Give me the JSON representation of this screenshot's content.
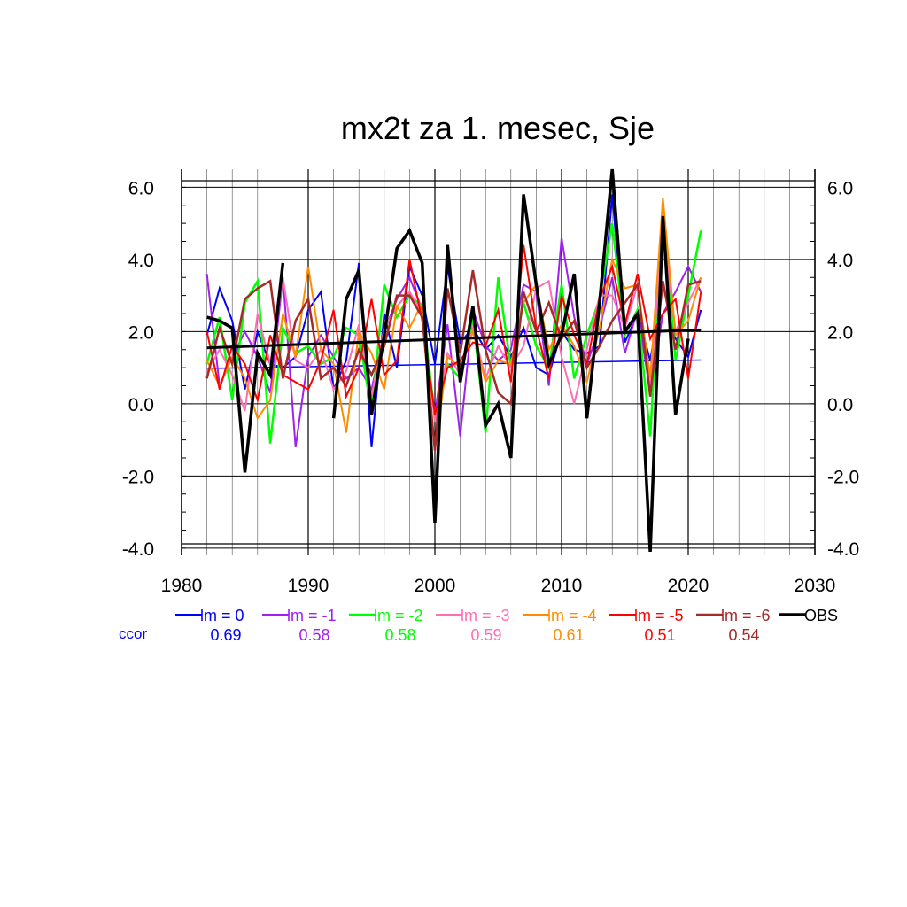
{
  "chart_data": {
    "type": "line",
    "title": "mx2t za 1. mesec, Sje",
    "xlabel": "",
    "ylabel": "",
    "xlim": [
      1980,
      2030
    ],
    "ylim": [
      -4.2,
      6.5
    ],
    "x_ticks": [
      1980,
      1990,
      2000,
      2010,
      2020,
      2030
    ],
    "x_tick_labels": [
      "1980",
      "1990",
      "2000",
      "2010",
      "2020",
      "2030"
    ],
    "y_ticks": [
      6,
      4,
      2,
      0,
      -2,
      -4
    ],
    "y_tick_labels": [
      "6.0",
      "4.0",
      "2.0",
      "0.0",
      "-2.0",
      "-4.0"
    ],
    "grid": true,
    "legend_position": "bottom",
    "ccor_label": "ccor",
    "x": [
      1982,
      1983,
      1984,
      1985,
      1986,
      1987,
      1988,
      1989,
      1990,
      1991,
      1992,
      1993,
      1994,
      1995,
      1996,
      1997,
      1998,
      1999,
      2000,
      2001,
      2002,
      2003,
      2004,
      2005,
      2006,
      2007,
      2008,
      2009,
      2010,
      2011,
      2012,
      2013,
      2014,
      2015,
      2016,
      2017,
      2018,
      2019,
      2020,
      2021
    ],
    "series": [
      {
        "name": "lm = 0",
        "ccor": "0.69",
        "color": "#0000ff",
        "width": 2,
        "values": [
          1.9,
          3.2,
          2.3,
          0.4,
          2.0,
          1.1,
          1.0,
          1.3,
          2.6,
          3.1,
          0.4,
          1.2,
          3.9,
          -1.2,
          2.5,
          1.0,
          3.8,
          3.0,
          1.1,
          3.8,
          1.7,
          2.1,
          1.5,
          1.9,
          1.3,
          2.1,
          1.0,
          0.8,
          2.0,
          1.5,
          1.4,
          1.6,
          5.8,
          1.7,
          2.5,
          1.2,
          3.3,
          1.8,
          1.3,
          2.6
        ],
        "trend": [
          0.98,
          1.21
        ]
      },
      {
        "name": "lm = -1",
        "ccor": "0.58",
        "color": "#a020f0",
        "width": 2,
        "values": [
          3.6,
          0.5,
          1.3,
          2.0,
          1.3,
          0.3,
          3.5,
          -1.2,
          1.3,
          1.9,
          1.3,
          0.7,
          1.0,
          0.4,
          2.0,
          2.9,
          3.5,
          2.6,
          -0.3,
          2.2,
          -0.9,
          2.6,
          1.6,
          1.2,
          1.5,
          3.3,
          3.1,
          0.5,
          4.6,
          2.4,
          1.1,
          2.1,
          3.5,
          1.4,
          2.6,
          0.3,
          2.5,
          3.1,
          3.8,
          3.1
        ]
      },
      {
        "name": "lm = -2",
        "ccor": "0.58",
        "color": "#00ff00",
        "width": 2.5,
        "values": [
          1.1,
          2.4,
          0.1,
          2.8,
          3.4,
          -1.1,
          2.1,
          1.4,
          1.6,
          1.1,
          1.3,
          2.1,
          1.9,
          -0.2,
          3.3,
          2.4,
          3.0,
          2.7,
          -0.4,
          1.1,
          0.7,
          2.4,
          -0.8,
          3.5,
          1.0,
          2.8,
          1.6,
          1.0,
          3.3,
          0.7,
          1.9,
          2.9,
          5.0,
          1.9,
          2.6,
          -0.9,
          5.2,
          1.2,
          3.0,
          4.8
        ]
      },
      {
        "name": "lm = -3",
        "ccor": "0.59",
        "color": "#ff6eb4",
        "width": 2,
        "values": [
          0.9,
          1.5,
          0.8,
          -0.2,
          2.5,
          1.1,
          3.5,
          1.2,
          1.0,
          1.5,
          0.4,
          0.9,
          2.2,
          0.2,
          2.1,
          2.7,
          3.1,
          2.5,
          -0.5,
          1.4,
          0.8,
          2.1,
          0.7,
          1.6,
          1.0,
          1.6,
          3.2,
          3.4,
          1.3,
          0.0,
          1.5,
          3.0,
          3.0,
          2.1,
          3.3,
          0.4,
          4.9,
          2.0,
          2.8,
          3.5
        ]
      },
      {
        "name": "lm = -4",
        "ccor": "0.61",
        "color": "#ff8c00",
        "width": 2,
        "values": [
          1.2,
          0.5,
          1.3,
          0.7,
          -0.4,
          0.1,
          2.5,
          1.3,
          3.8,
          1.5,
          1.1,
          -0.8,
          2.0,
          1.4,
          0.4,
          2.7,
          2.1,
          2.8,
          -1.3,
          1.3,
          1.0,
          2.0,
          0.6,
          1.2,
          1.1,
          2.8,
          3.3,
          1.5,
          2.2,
          1.6,
          0.6,
          2.1,
          4.0,
          3.2,
          3.3,
          0.7,
          5.7,
          1.9,
          2.3,
          3.5
        ]
      },
      {
        "name": "lm = -5",
        "ccor": "0.51",
        "color": "#ff0000",
        "width": 2,
        "values": [
          2.0,
          0.4,
          1.6,
          1.1,
          0.1,
          1.9,
          0.8,
          0.6,
          0.4,
          1.2,
          2.6,
          0.2,
          1.0,
          2.9,
          0.8,
          1.2,
          4.0,
          2.3,
          -0.3,
          1.0,
          1.2,
          1.7,
          1.6,
          2.6,
          0.6,
          4.4,
          2.1,
          0.7,
          3.0,
          1.9,
          1.1,
          2.9,
          3.8,
          2.2,
          3.6,
          1.8,
          2.5,
          2.9,
          0.7,
          3.1
        ]
      },
      {
        "name": "lm = -6",
        "ccor": "0.54",
        "color": "#a52a2a",
        "width": 2.5,
        "values": [
          0.7,
          2.1,
          1.1,
          2.9,
          3.2,
          3.4,
          0.7,
          2.3,
          2.9,
          0.7,
          1.0,
          0.5,
          1.5,
          0.8,
          1.6,
          3.0,
          3.0,
          2.4,
          -1.3,
          3.2,
          1.4,
          3.7,
          1.5,
          0.3,
          0.0,
          3.1,
          2.0,
          2.8,
          1.8,
          2.3,
          1.0,
          1.6,
          2.3,
          2.8,
          3.3,
          0.2,
          3.4,
          1.5,
          3.3,
          3.4
        ]
      },
      {
        "name": "OBS",
        "ccor": "",
        "color": "#000000",
        "width": 3.5,
        "values": [
          2.4,
          2.3,
          2.1,
          -1.9,
          1.4,
          0.8,
          3.9,
          null,
          null,
          null,
          -0.4,
          2.9,
          3.7,
          -0.3,
          1.9,
          4.3,
          4.8,
          3.9,
          -3.3,
          4.4,
          0.6,
          2.7,
          -0.6,
          0.0,
          -1.5,
          5.8,
          3.3,
          1.1,
          1.9,
          3.6,
          -0.4,
          2.8,
          6.5,
          2.0,
          2.5,
          -4.1,
          5.2,
          -0.3,
          1.8,
          null
        ],
        "trend": [
          1.55,
          2.05
        ]
      }
    ]
  }
}
